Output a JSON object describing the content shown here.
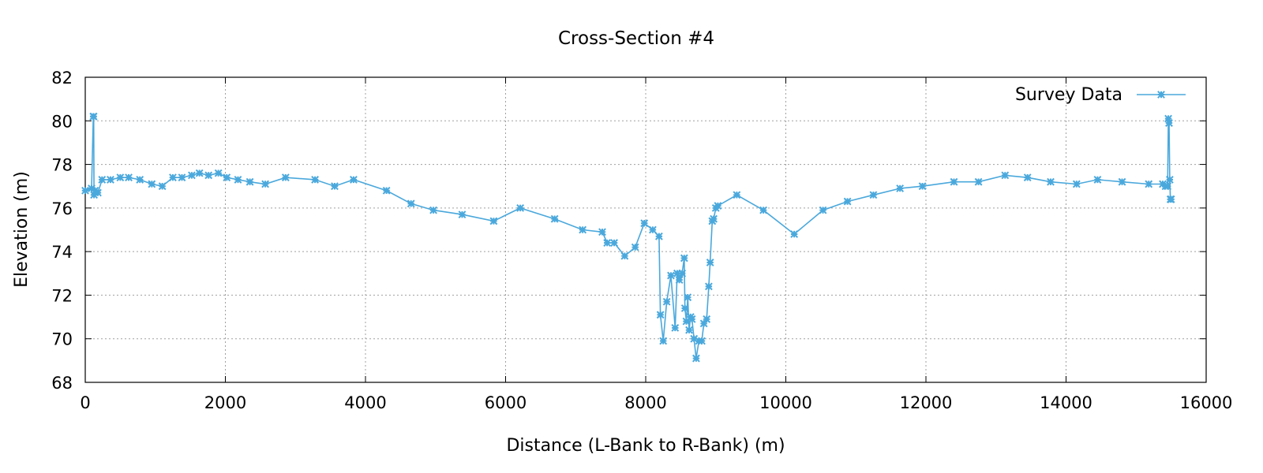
{
  "chart_data": {
    "type": "line",
    "title": "Cross-Section #4",
    "xlabel": "Distance (L-Bank to R-Bank) (m)",
    "ylabel": "Elevation (m)",
    "xlim": [
      0,
      16000
    ],
    "ylim": [
      68,
      82
    ],
    "xticks": [
      0,
      2000,
      4000,
      6000,
      8000,
      10000,
      12000,
      14000,
      16000
    ],
    "yticks": [
      68,
      70,
      72,
      74,
      76,
      78,
      80,
      82
    ],
    "grid": true,
    "legend": "top-right",
    "color": "#4aa8dc",
    "marker": "asterisk",
    "series": [
      {
        "name": "Survey Data",
        "x": [
          0,
          90,
          115,
          120,
          125,
          140,
          180,
          240,
          360,
          500,
          620,
          780,
          950,
          1100,
          1250,
          1380,
          1520,
          1630,
          1760,
          1900,
          2020,
          2180,
          2350,
          2570,
          2860,
          3280,
          3560,
          3830,
          4300,
          4650,
          4970,
          5380,
          5830,
          6210,
          6700,
          7100,
          7380,
          7450,
          7550,
          7700,
          7850,
          7980,
          8100,
          8190,
          8210,
          8250,
          8300,
          8360,
          8420,
          8450,
          8480,
          8520,
          8550,
          8560,
          8580,
          8600,
          8620,
          8640,
          8660,
          8690,
          8720,
          8760,
          8800,
          8830,
          8870,
          8900,
          8920,
          8950,
          8970,
          9000,
          9030,
          9300,
          9680,
          10120,
          10530,
          10880,
          11250,
          11630,
          11950,
          12400,
          12750,
          13130,
          13450,
          13780,
          14150,
          14450,
          14800,
          15180,
          15380,
          15420,
          15450,
          15460,
          15470,
          15480,
          15490,
          15500
        ],
        "y": [
          76.8,
          76.9,
          80.2,
          80.2,
          76.6,
          76.8,
          76.7,
          77.3,
          77.3,
          77.4,
          77.4,
          77.3,
          77.1,
          77.0,
          77.4,
          77.4,
          77.5,
          77.6,
          77.5,
          77.6,
          77.4,
          77.3,
          77.2,
          77.1,
          77.4,
          77.3,
          77.0,
          77.3,
          76.8,
          76.2,
          75.9,
          75.7,
          75.4,
          76.0,
          75.5,
          75.0,
          74.9,
          74.4,
          74.4,
          73.8,
          74.2,
          75.3,
          75.0,
          74.7,
          71.1,
          69.9,
          71.7,
          72.9,
          70.5,
          73.0,
          72.7,
          73.0,
          73.7,
          71.4,
          70.8,
          71.9,
          70.4,
          71.0,
          70.9,
          70.0,
          69.1,
          69.9,
          69.9,
          70.7,
          70.9,
          72.4,
          73.5,
          75.4,
          75.5,
          76.0,
          76.1,
          76.6,
          75.9,
          74.8,
          75.9,
          76.3,
          76.6,
          76.9,
          77.0,
          77.2,
          77.2,
          77.5,
          77.4,
          77.2,
          77.1,
          77.3,
          77.2,
          77.1,
          77.1,
          77.0,
          77.0,
          80.1,
          79.9,
          77.3,
          76.4,
          76.4
        ]
      }
    ]
  }
}
